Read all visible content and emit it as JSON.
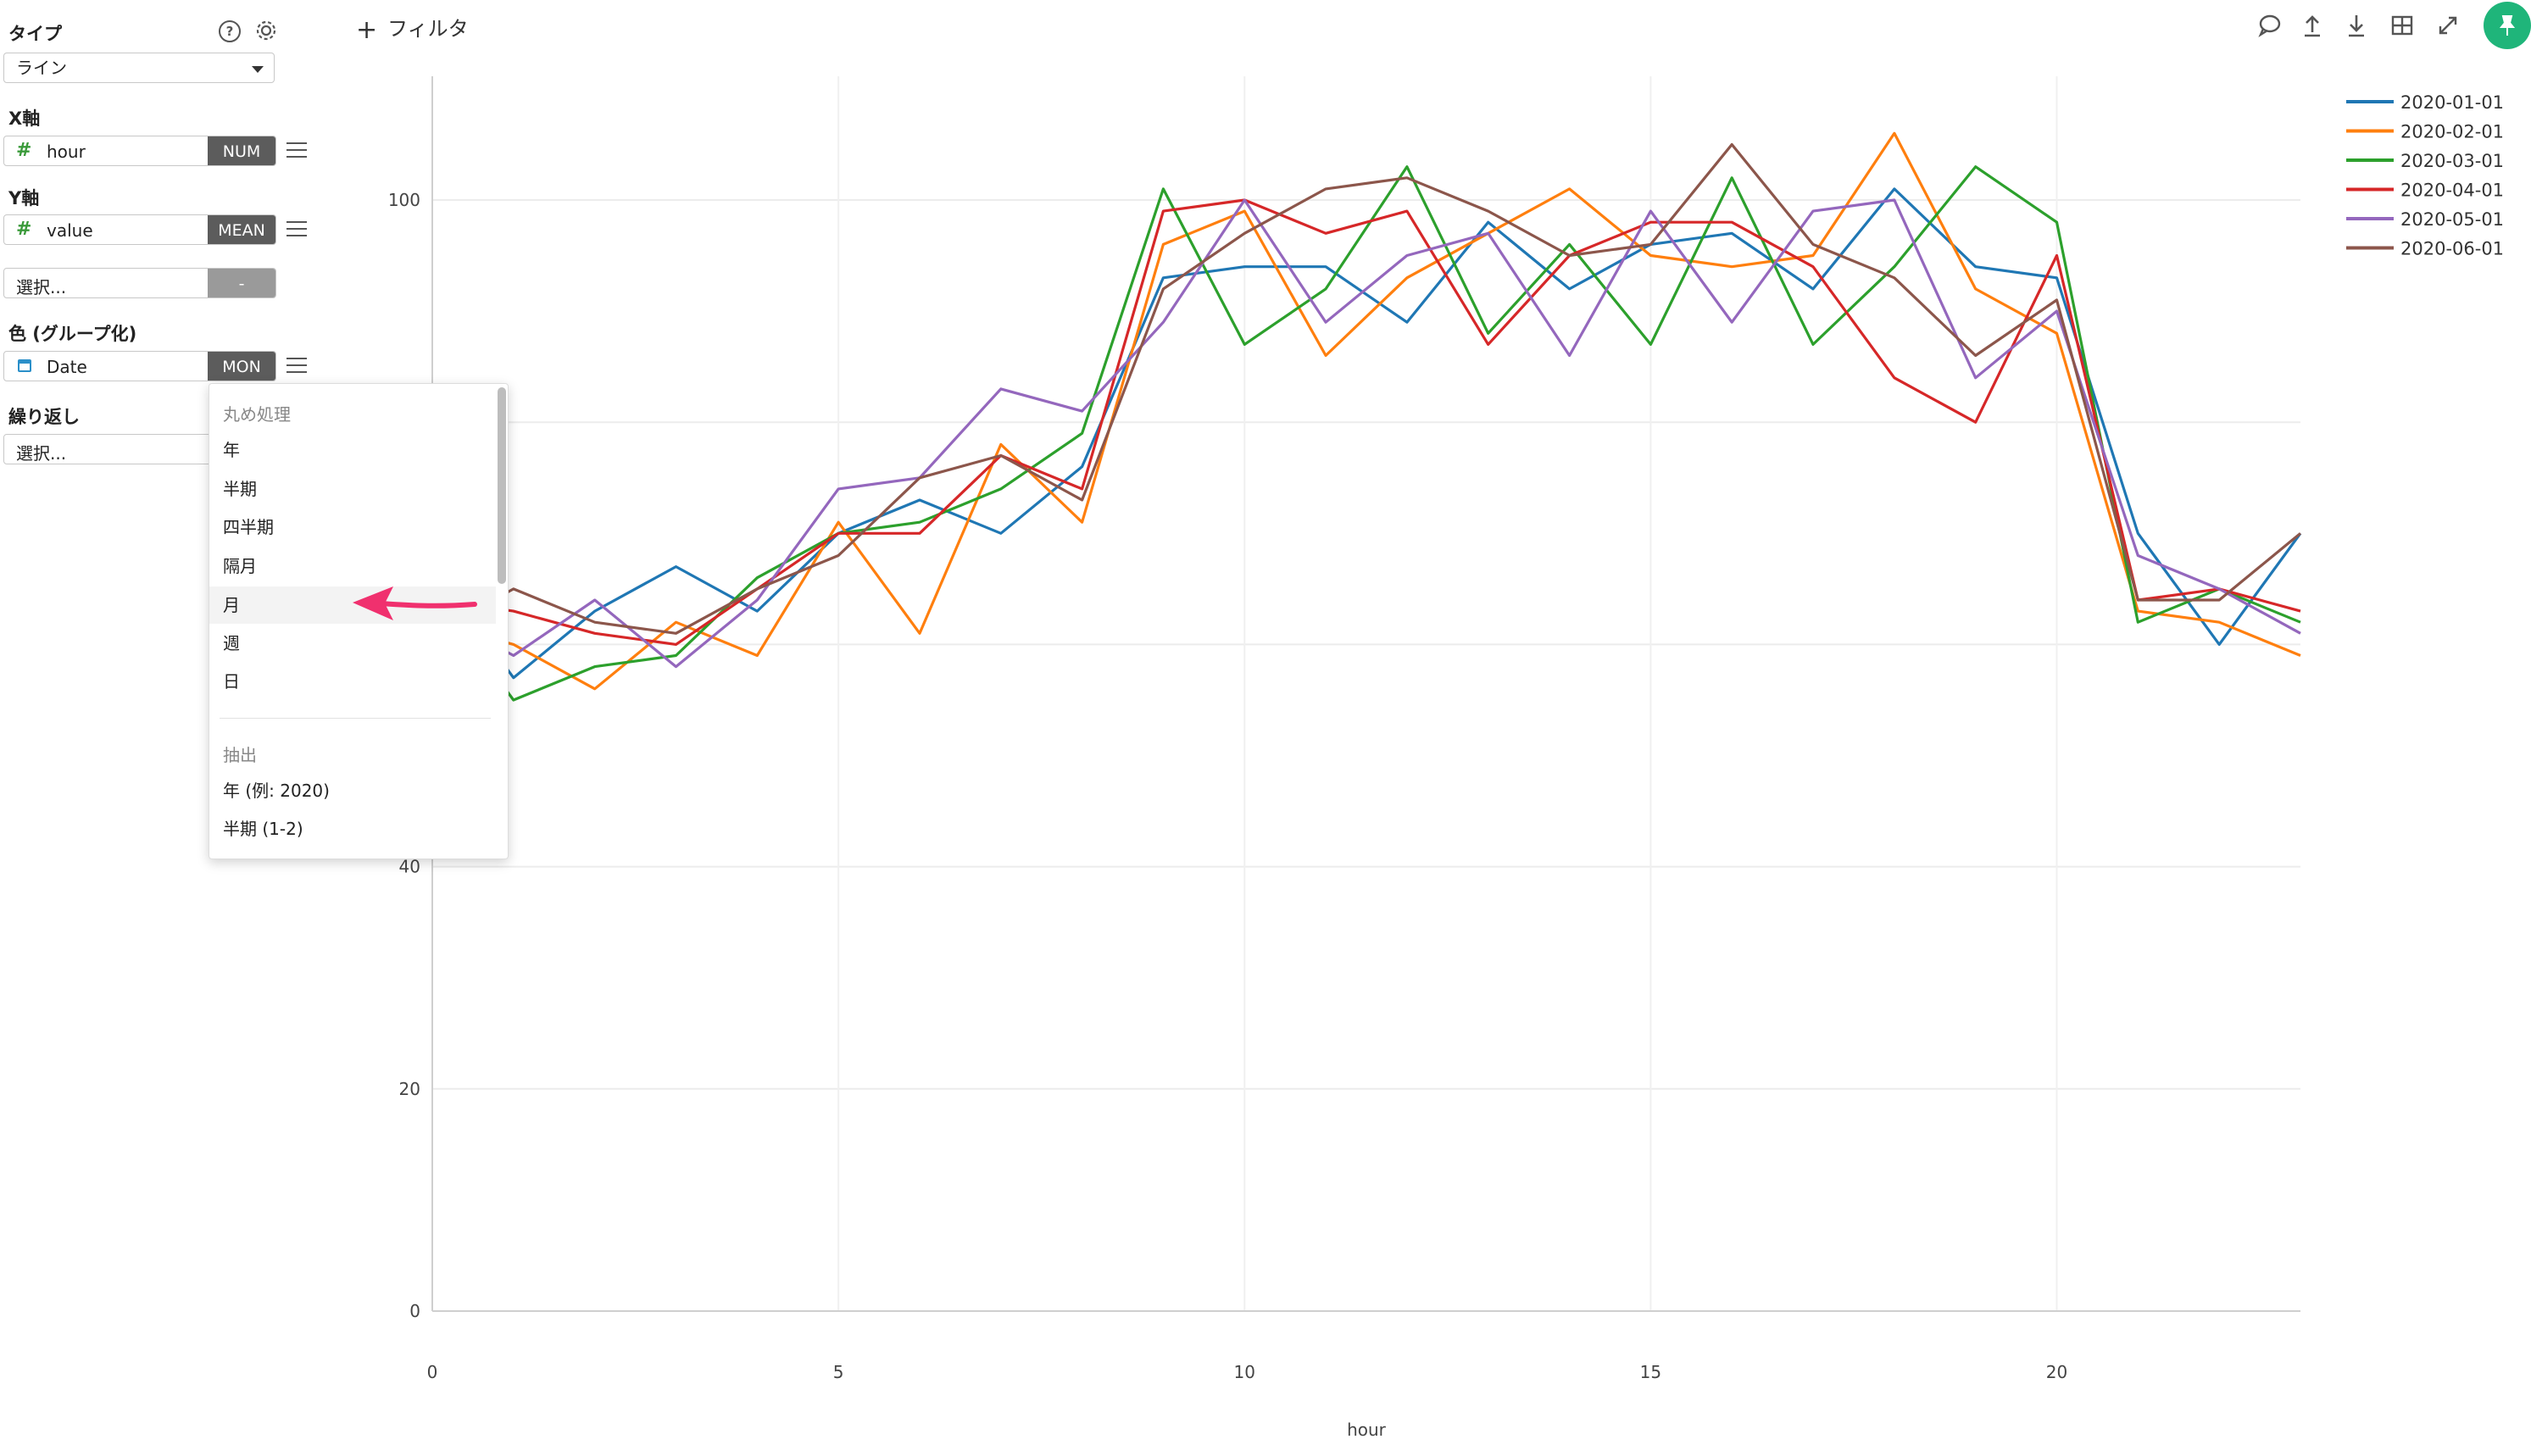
{
  "panel": {
    "type_label": "タイプ",
    "type_value": "ライン",
    "x_axis_label": "X軸",
    "x_field": {
      "name": "hour",
      "tag": "NUM"
    },
    "y_axis_label": "Y軸",
    "y_field": {
      "name": "value",
      "tag": "MEAN"
    },
    "y2_placeholder": "選択...",
    "y2_tag": "-",
    "color_label": "色 (グループ化)",
    "color_field": {
      "name": "Date",
      "tag": "MON"
    },
    "repeat_label": "繰り返し",
    "repeat_placeholder": "選択..."
  },
  "dropdown": {
    "rounding_header": "丸め処理",
    "rounding_items": [
      "年",
      "半期",
      "四半期",
      "隔月",
      "月",
      "週",
      "日"
    ],
    "highlighted_index": 4,
    "extract_header": "抽出",
    "extract_items": [
      "年 (例: 2020)",
      "半期 (1-2)"
    ]
  },
  "toolbar": {
    "filter_label": "フィルタ",
    "icons": [
      "comment-icon",
      "upload-icon",
      "download-icon",
      "table-icon",
      "expand-icon",
      "pin-icon"
    ]
  },
  "colors": {
    "accent": "#1fb57a",
    "arrow": "#f0306e"
  },
  "chart_data": {
    "type": "line",
    "xlabel": "hour",
    "ylabel": "",
    "xlim": [
      0,
      23
    ],
    "ylim": [
      0,
      100
    ],
    "x_ticks": [
      "0",
      "5",
      "10",
      "15",
      "20"
    ],
    "y_ticks": [
      "0",
      "20",
      "40",
      "100"
    ],
    "grid": true,
    "legend_position": "top-right",
    "x": [
      0,
      1,
      2,
      3,
      4,
      5,
      6,
      7,
      8,
      9,
      10,
      11,
      12,
      13,
      14,
      15,
      16,
      17,
      18,
      19,
      20,
      21,
      22,
      23
    ],
    "series": [
      {
        "name": "2020-01-01",
        "color": "#1f77b4",
        "values": [
          67,
          57,
          63,
          67,
          63,
          70,
          73,
          70,
          76,
          93,
          94,
          94,
          89,
          98,
          92,
          96,
          97,
          92,
          101,
          94,
          93,
          70,
          60,
          70
        ]
      },
      {
        "name": "2020-02-01",
        "color": "#ff7f0e",
        "values": [
          62,
          60,
          56,
          62,
          59,
          71,
          61,
          78,
          71,
          96,
          99,
          86,
          93,
          97,
          101,
          95,
          94,
          95,
          106,
          92,
          88,
          63,
          62,
          59
        ]
      },
      {
        "name": "2020-03-01",
        "color": "#2ca02c",
        "values": [
          65,
          55,
          58,
          59,
          66,
          70,
          71,
          74,
          79,
          101,
          87,
          92,
          103,
          88,
          96,
          87,
          102,
          87,
          94,
          103,
          98,
          62,
          65,
          62
        ]
      },
      {
        "name": "2020-04-01",
        "color": "#d62728",
        "values": [
          64,
          63,
          61,
          60,
          65,
          70,
          70,
          77,
          74,
          99,
          100,
          97,
          99,
          87,
          95,
          98,
          98,
          94,
          84,
          80,
          95,
          64,
          65,
          63
        ]
      },
      {
        "name": "2020-05-01",
        "color": "#9467bd",
        "values": [
          63,
          59,
          64,
          58,
          64,
          74,
          75,
          83,
          81,
          89,
          100,
          89,
          95,
          97,
          86,
          99,
          89,
          99,
          100,
          84,
          90,
          68,
          65,
          61
        ]
      },
      {
        "name": "2020-06-01",
        "color": "#8c564b",
        "values": [
          61,
          65,
          62,
          61,
          65,
          68,
          75,
          77,
          73,
          92,
          97,
          101,
          102,
          99,
          95,
          96,
          105,
          96,
          93,
          86,
          91,
          64,
          64,
          70
        ]
      }
    ]
  }
}
